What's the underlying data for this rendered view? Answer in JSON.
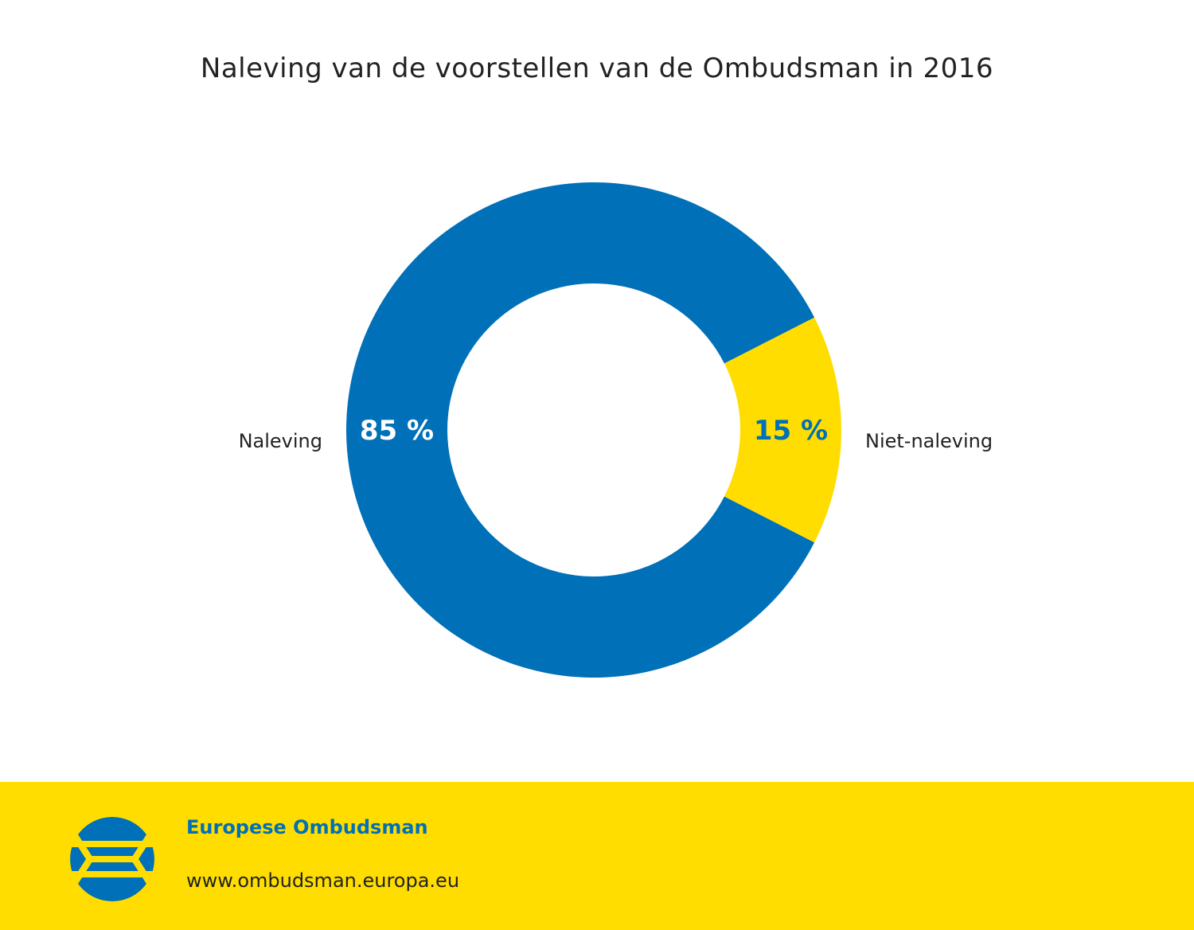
{
  "title": "Naleving van de voorstellen van de Ombudsman in 2016",
  "chart_data": {
    "type": "pie",
    "title": "Naleving van de voorstellen van de Ombudsman in 2016",
    "donut": true,
    "slices": [
      {
        "label": "Naleving",
        "value": 85,
        "value_label": "85 %",
        "color": "#0070B8",
        "label_color": "#ffffff"
      },
      {
        "label": "Niet-naleving",
        "value": 15,
        "value_label": "15 %",
        "color": "#FFDD00",
        "label_color": "#0070B8"
      }
    ]
  },
  "footer": {
    "organization": "Europese Ombudsman",
    "url": "www.ombudsman.europa.eu",
    "logo_icon": "european-ombudsman-logo",
    "background_color": "#FFDD00",
    "brand_color": "#0070B8"
  }
}
